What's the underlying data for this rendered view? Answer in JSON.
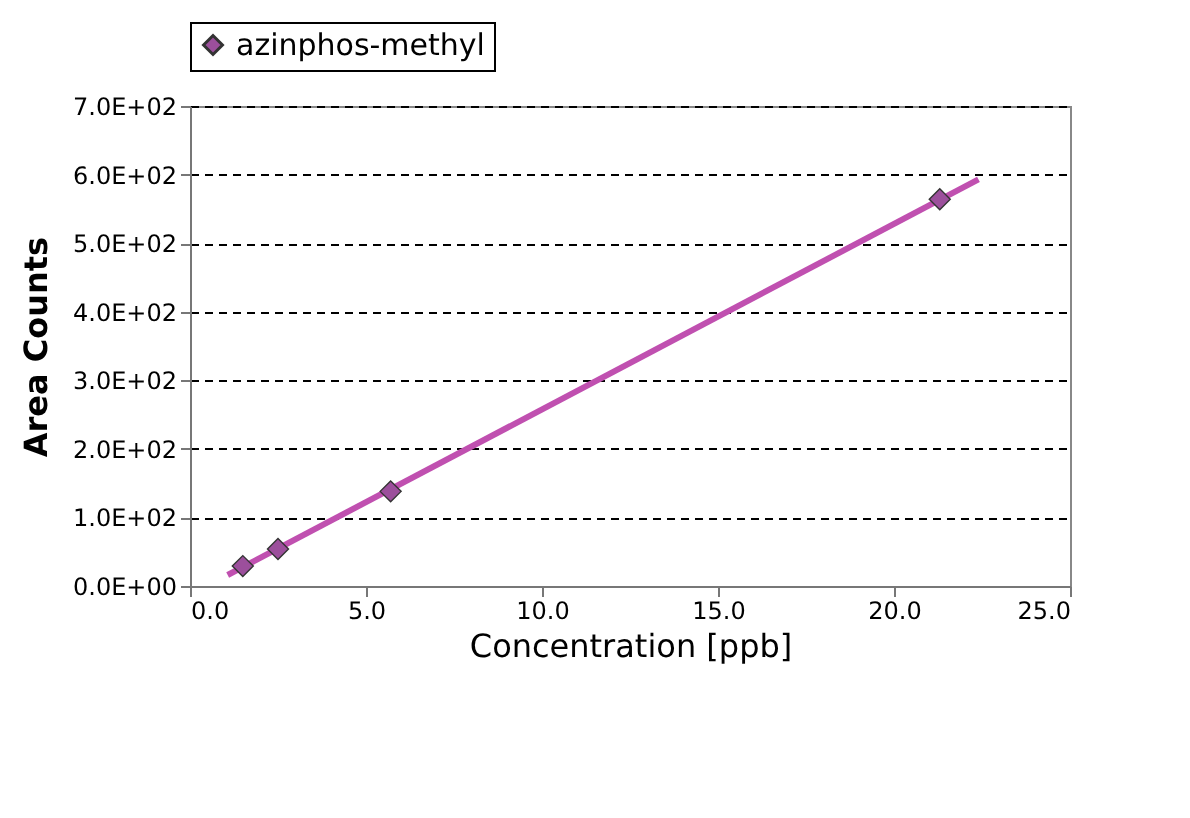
{
  "chart_data": {
    "type": "scatter",
    "xlabel": "Concentration [ppb]",
    "ylabel": "Area Counts",
    "series": [
      {
        "name": "azinphos-methyl",
        "marker": "diamond",
        "color": "#9c4f9c",
        "x": [
          1.5,
          2.5,
          5.7,
          21.3
        ],
        "values": [
          29,
          54,
          138,
          564
        ]
      },
      {
        "type": "line",
        "color": "#c050b0",
        "x": [
          1.07,
          22.4
        ],
        "values": [
          16,
          593
        ]
      }
    ],
    "xlim": [
      0,
      25
    ],
    "xticks": [
      {
        "value": 0,
        "label": "0.0"
      },
      {
        "value": 5,
        "label": "5.0"
      },
      {
        "value": 10,
        "label": "10.0"
      },
      {
        "value": 15,
        "label": "15.0"
      },
      {
        "value": 20,
        "label": "20.0"
      },
      {
        "value": 25,
        "label": "25.0"
      }
    ],
    "ylim": [
      0,
      700
    ],
    "yticks": [
      {
        "value": 0,
        "label": "0.0E+00"
      },
      {
        "value": 100,
        "label": "1.0E+02"
      },
      {
        "value": 200,
        "label": "2.0E+02"
      },
      {
        "value": 300,
        "label": "3.0E+02"
      },
      {
        "value": 400,
        "label": "4.0E+02"
      },
      {
        "value": 500,
        "label": "5.0E+02"
      },
      {
        "value": 600,
        "label": "6.0E+02"
      },
      {
        "value": 700,
        "label": "7.0E+02"
      }
    ],
    "grid": "y",
    "legend": "top",
    "line_style": "solid"
  }
}
